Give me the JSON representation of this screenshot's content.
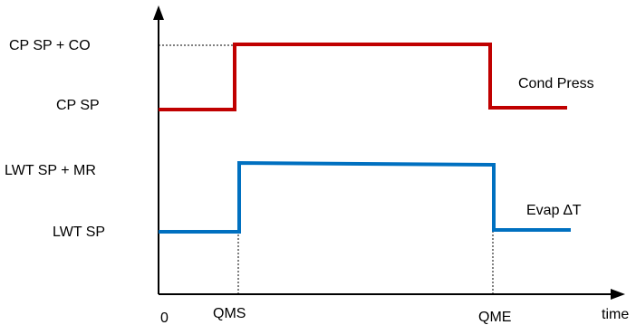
{
  "y_labels": {
    "cp_sp_co": "CP SP + CO",
    "cp_sp": "CP SP",
    "lwt_sp_mr": "LWT SP + MR",
    "lwt_sp": "LWT SP"
  },
  "x_labels": {
    "origin": "0",
    "qms": "QMS",
    "qme": "QME",
    "time": "time"
  },
  "series": {
    "cond_press": {
      "label": "Cond Press",
      "color": "#c00000"
    },
    "evap_dt": {
      "label": "Evap ∆T",
      "color": "#0070c0"
    }
  },
  "colors": {
    "axis": "#000000"
  }
}
